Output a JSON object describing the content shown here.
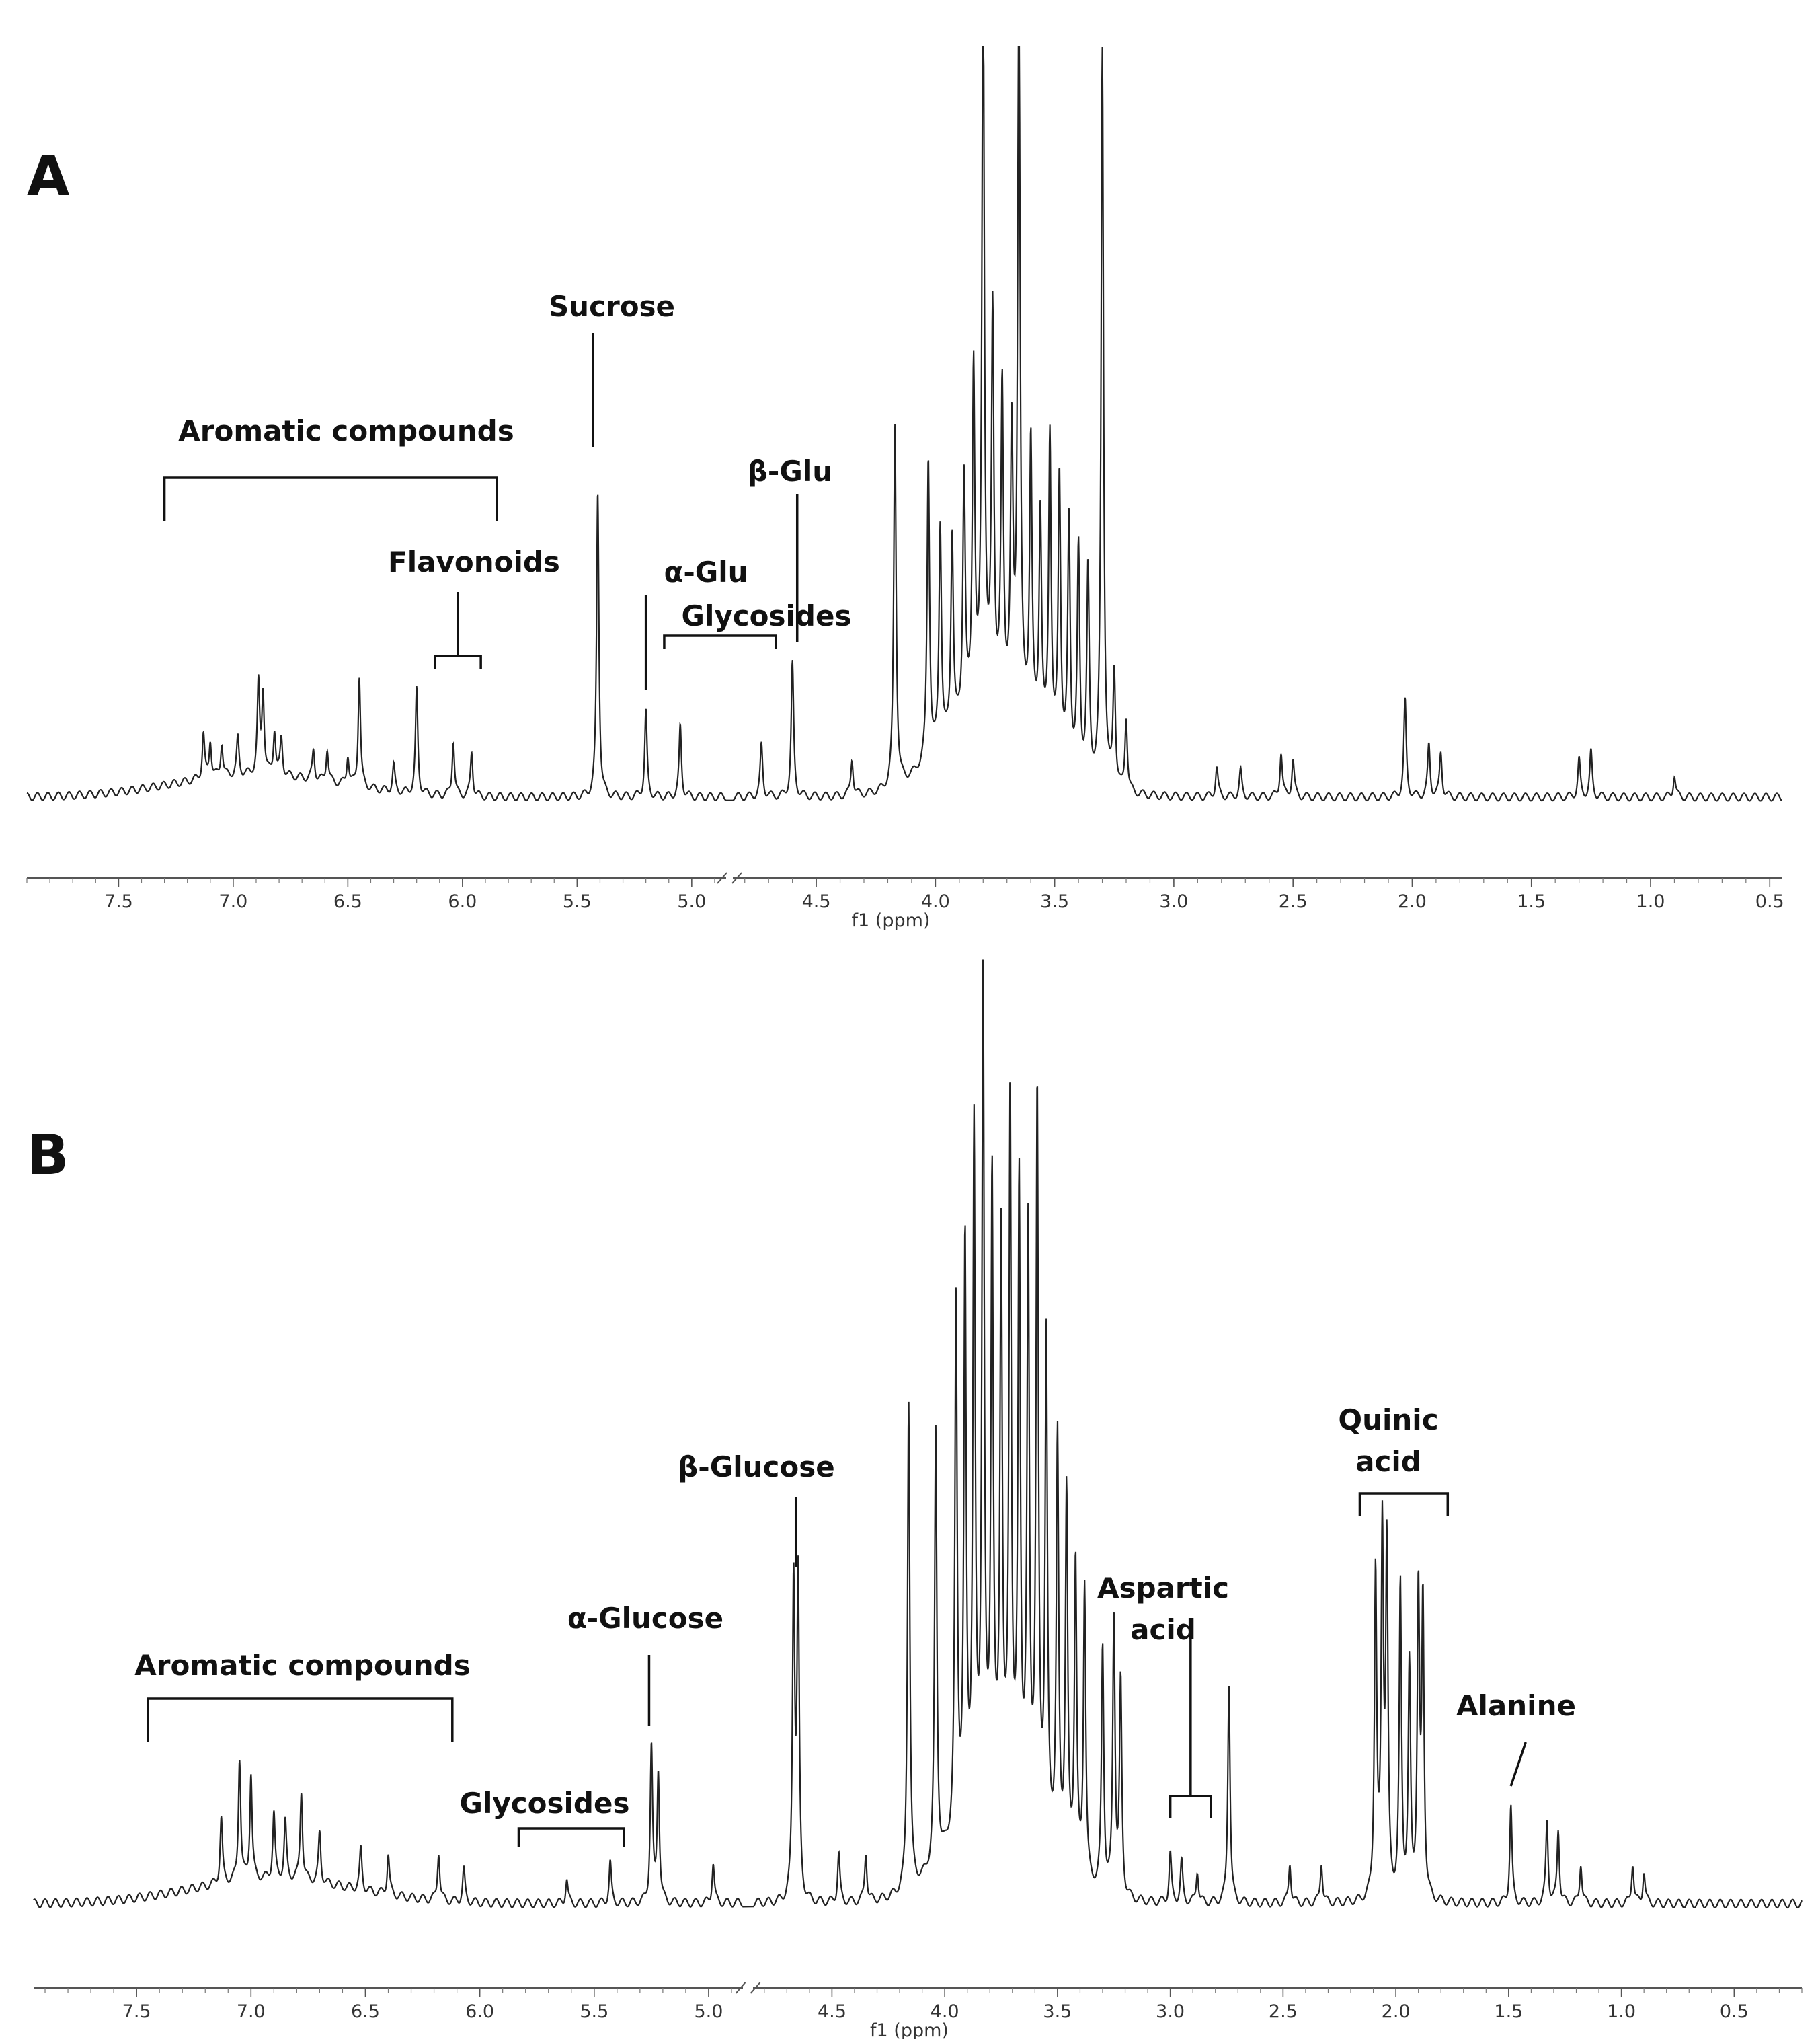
{
  "chart_data": [
    {
      "type": "line",
      "panel_label": "A",
      "title": "",
      "xlabel": "f1 (ppm)",
      "ylabel": "",
      "x_reversed": true,
      "axis_break_ppm": 4.85,
      "x_segments": [
        [
          7.9,
          4.85
        ],
        [
          4.85,
          0.45
        ]
      ],
      "xticks": [
        7.5,
        7.0,
        6.5,
        6.0,
        5.5,
        5.0,
        4.5,
        4.0,
        3.5,
        3.0,
        2.5,
        2.0,
        1.5,
        1.0,
        0.5
      ],
      "xtick_labels": [
        "7.5",
        "7.0",
        "6.5",
        "6.0",
        "5.5",
        "5.0",
        "4.5",
        "4.0",
        "3.5",
        "3.0",
        "2.5",
        "2.0",
        "1.5",
        "1.0",
        "0.5"
      ],
      "y_range": [
        0,
        1
      ],
      "grid": false,
      "peaks": [
        {
          "ppm": 7.13,
          "h": 0.06
        },
        {
          "ppm": 7.1,
          "h": 0.05
        },
        {
          "ppm": 7.05,
          "h": 0.045
        },
        {
          "ppm": 6.98,
          "h": 0.05
        },
        {
          "ppm": 6.89,
          "h": 0.12
        },
        {
          "ppm": 6.87,
          "h": 0.11
        },
        {
          "ppm": 6.82,
          "h": 0.06
        },
        {
          "ppm": 6.79,
          "h": 0.05
        },
        {
          "ppm": 6.65,
          "h": 0.04
        },
        {
          "ppm": 6.59,
          "h": 0.045
        },
        {
          "ppm": 6.5,
          "h": 0.04
        },
        {
          "ppm": 6.45,
          "h": 0.15
        },
        {
          "ppm": 6.3,
          "h": 0.035
        },
        {
          "ppm": 6.2,
          "h": 0.14
        },
        {
          "ppm": 6.04,
          "h": 0.075
        },
        {
          "ppm": 5.96,
          "h": 0.06
        },
        {
          "ppm": 5.41,
          "h": 0.41
        },
        {
          "ppm": 5.2,
          "h": 0.115
        },
        {
          "ppm": 5.05,
          "h": 0.095
        },
        {
          "ppm": 4.73,
          "h": 0.07
        },
        {
          "ppm": 4.6,
          "h": 0.18
        },
        {
          "ppm": 4.35,
          "h": 0.05
        },
        {
          "ppm": 4.17,
          "h": 0.49
        },
        {
          "ppm": 4.03,
          "h": 0.41
        },
        {
          "ppm": 3.98,
          "h": 0.3
        },
        {
          "ppm": 3.93,
          "h": 0.27
        },
        {
          "ppm": 3.88,
          "h": 0.33
        },
        {
          "ppm": 3.84,
          "h": 0.46
        },
        {
          "ppm": 3.8,
          "h": 1.0
        },
        {
          "ppm": 3.76,
          "h": 0.52
        },
        {
          "ppm": 3.72,
          "h": 0.42
        },
        {
          "ppm": 3.68,
          "h": 0.36
        },
        {
          "ppm": 3.65,
          "h": 1.0
        },
        {
          "ppm": 3.6,
          "h": 0.38
        },
        {
          "ppm": 3.56,
          "h": 0.3
        },
        {
          "ppm": 3.52,
          "h": 0.42
        },
        {
          "ppm": 3.48,
          "h": 0.38
        },
        {
          "ppm": 3.44,
          "h": 0.33
        },
        {
          "ppm": 3.4,
          "h": 0.3
        },
        {
          "ppm": 3.36,
          "h": 0.28
        },
        {
          "ppm": 3.3,
          "h": 1.0
        },
        {
          "ppm": 3.25,
          "h": 0.16
        },
        {
          "ppm": 3.2,
          "h": 0.1
        },
        {
          "ppm": 2.82,
          "h": 0.04
        },
        {
          "ppm": 2.72,
          "h": 0.035
        },
        {
          "ppm": 2.55,
          "h": 0.06
        },
        {
          "ppm": 2.5,
          "h": 0.05
        },
        {
          "ppm": 2.03,
          "h": 0.13
        },
        {
          "ppm": 1.93,
          "h": 0.07
        },
        {
          "ppm": 1.88,
          "h": 0.06
        },
        {
          "ppm": 1.3,
          "h": 0.05
        },
        {
          "ppm": 1.25,
          "h": 0.06
        },
        {
          "ppm": 0.9,
          "h": 0.03
        }
      ],
      "annotations": [
        {
          "label": "Aromatic compounds",
          "bracket": [
            7.3,
            5.85
          ]
        },
        {
          "label": "Flavonoids",
          "bracket": [
            6.12,
            5.92
          ]
        },
        {
          "label": "Sucrose",
          "marker_ppm": 5.43
        },
        {
          "label": "α-Glu",
          "marker_ppm": 5.2
        },
        {
          "label": "Glycosides",
          "bracket": [
            5.12,
            4.67
          ]
        },
        {
          "label": "β-Glu",
          "marker_ppm": 4.58
        }
      ]
    },
    {
      "type": "line",
      "panel_label": "B",
      "title": "",
      "xlabel": "f1 (ppm)",
      "ylabel": "",
      "x_reversed": true,
      "axis_break_ppm": 4.85,
      "x_segments": [
        [
          7.95,
          4.85
        ],
        [
          4.85,
          0.2
        ]
      ],
      "xticks": [
        7.5,
        7.0,
        6.5,
        6.0,
        5.5,
        5.0,
        4.5,
        4.0,
        3.5,
        3.0,
        2.5,
        2.0,
        1.5,
        1.0,
        0.5
      ],
      "xtick_labels": [
        "7.5",
        "7.0",
        "6.5",
        "6.0",
        "5.5",
        "5.0",
        "4.5",
        "4.0",
        "3.5",
        "3.0",
        "2.5",
        "2.0",
        "1.5",
        "1.0",
        "0.5"
      ],
      "y_range": [
        0,
        1
      ],
      "grid": false,
      "peaks": [
        {
          "ppm": 7.13,
          "h": 0.08
        },
        {
          "ppm": 7.05,
          "h": 0.15
        },
        {
          "ppm": 7.0,
          "h": 0.13
        },
        {
          "ppm": 6.9,
          "h": 0.08
        },
        {
          "ppm": 6.85,
          "h": 0.07
        },
        {
          "ppm": 6.78,
          "h": 0.11
        },
        {
          "ppm": 6.7,
          "h": 0.06
        },
        {
          "ppm": 6.52,
          "h": 0.05
        },
        {
          "ppm": 6.4,
          "h": 0.05
        },
        {
          "ppm": 6.18,
          "h": 0.06
        },
        {
          "ppm": 6.07,
          "h": 0.04
        },
        {
          "ppm": 5.62,
          "h": 0.03
        },
        {
          "ppm": 5.43,
          "h": 0.05
        },
        {
          "ppm": 5.25,
          "h": 0.19
        },
        {
          "ppm": 5.22,
          "h": 0.16
        },
        {
          "ppm": 4.98,
          "h": 0.05
        },
        {
          "ppm": 4.67,
          "h": 0.39
        },
        {
          "ppm": 4.65,
          "h": 0.39
        },
        {
          "ppm": 4.47,
          "h": 0.06
        },
        {
          "ppm": 4.35,
          "h": 0.06
        },
        {
          "ppm": 4.16,
          "h": 0.6
        },
        {
          "ppm": 4.04,
          "h": 0.53
        },
        {
          "ppm": 3.95,
          "h": 0.65
        },
        {
          "ppm": 3.91,
          "h": 0.7
        },
        {
          "ppm": 3.87,
          "h": 0.82
        },
        {
          "ppm": 3.83,
          "h": 1.0
        },
        {
          "ppm": 3.79,
          "h": 0.75
        },
        {
          "ppm": 3.75,
          "h": 0.68
        },
        {
          "ppm": 3.71,
          "h": 0.85
        },
        {
          "ppm": 3.67,
          "h": 0.75
        },
        {
          "ppm": 3.63,
          "h": 0.7
        },
        {
          "ppm": 3.59,
          "h": 0.88
        },
        {
          "ppm": 3.55,
          "h": 0.6
        },
        {
          "ppm": 3.5,
          "h": 0.5
        },
        {
          "ppm": 3.46,
          "h": 0.45
        },
        {
          "ppm": 3.42,
          "h": 0.38
        },
        {
          "ppm": 3.38,
          "h": 0.36
        },
        {
          "ppm": 3.3,
          "h": 0.3
        },
        {
          "ppm": 3.25,
          "h": 0.34
        },
        {
          "ppm": 3.22,
          "h": 0.26
        },
        {
          "ppm": 3.0,
          "h": 0.06
        },
        {
          "ppm": 2.95,
          "h": 0.05
        },
        {
          "ppm": 2.88,
          "h": 0.04
        },
        {
          "ppm": 2.74,
          "h": 0.27
        },
        {
          "ppm": 2.47,
          "h": 0.05
        },
        {
          "ppm": 2.33,
          "h": 0.05
        },
        {
          "ppm": 2.09,
          "h": 0.4
        },
        {
          "ppm": 2.06,
          "h": 0.44
        },
        {
          "ppm": 2.04,
          "h": 0.42
        },
        {
          "ppm": 1.98,
          "h": 0.38
        },
        {
          "ppm": 1.94,
          "h": 0.28
        },
        {
          "ppm": 1.9,
          "h": 0.37
        },
        {
          "ppm": 1.88,
          "h": 0.36
        },
        {
          "ppm": 1.49,
          "h": 0.12
        },
        {
          "ppm": 1.33,
          "h": 0.1
        },
        {
          "ppm": 1.28,
          "h": 0.09
        },
        {
          "ppm": 1.18,
          "h": 0.05
        },
        {
          "ppm": 0.95,
          "h": 0.05
        },
        {
          "ppm": 0.9,
          "h": 0.04
        }
      ],
      "annotations": [
        {
          "label": "Aromatic compounds",
          "bracket": [
            7.45,
            6.12
          ]
        },
        {
          "label": "Glycosides",
          "bracket": [
            5.83,
            5.37
          ]
        },
        {
          "label": "α-Glucose",
          "marker_ppm": 5.26
        },
        {
          "label": "β-Glucose",
          "marker_ppm": 4.66
        },
        {
          "label": "Aspartic acid",
          "bracket": [
            3.0,
            2.82
          ]
        },
        {
          "label": "Quinic acid",
          "bracket": [
            2.16,
            1.77
          ]
        },
        {
          "label": "Alanine",
          "marker_ppm": 1.49
        }
      ]
    }
  ]
}
